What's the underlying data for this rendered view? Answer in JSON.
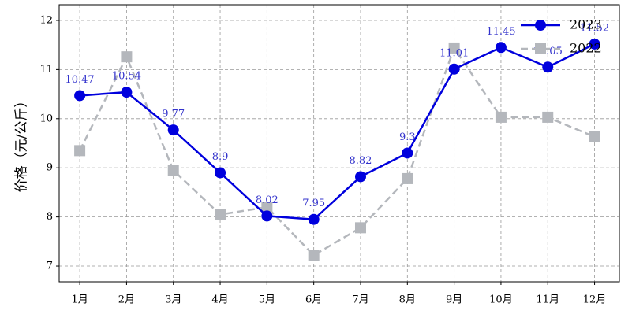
{
  "chart_data": {
    "type": "line",
    "ylabel": "价格（元/公斤）",
    "categories": [
      "1月",
      "2月",
      "3月",
      "4月",
      "5月",
      "6月",
      "7月",
      "8月",
      "9月",
      "10月",
      "11月",
      "12月"
    ],
    "series": [
      {
        "name": "2023",
        "color": "#0000dd",
        "linestyle": "solid",
        "marker": "circle",
        "show_labels": true,
        "values": [
          10.47,
          10.54,
          9.77,
          8.9,
          8.02,
          7.95,
          8.82,
          9.3,
          11.01,
          11.45,
          11.05,
          11.52
        ]
      },
      {
        "name": "2022",
        "color": "#b4b7bc",
        "linestyle": "dashed",
        "marker": "square",
        "show_labels": false,
        "values": [
          9.35,
          11.26,
          8.95,
          8.05,
          8.2,
          7.22,
          7.78,
          8.78,
          11.44,
          10.03,
          10.03,
          9.63
        ]
      }
    ],
    "ylim": [
      6.68,
      12.32
    ],
    "yticks": [
      7,
      8,
      9,
      10,
      11,
      12
    ],
    "grid": true,
    "legend": "upper right"
  }
}
